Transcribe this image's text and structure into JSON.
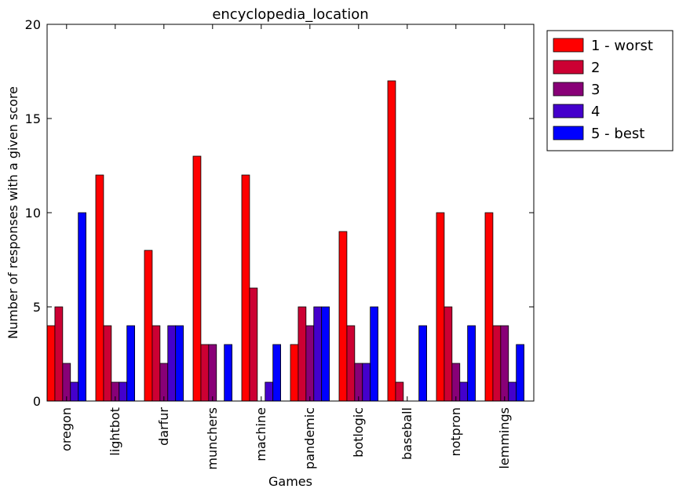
{
  "chart_data": {
    "type": "bar",
    "title": "encyclopedia_location",
    "xlabel": "Games",
    "ylabel": "Number of responses with a given score",
    "ylim": [
      0,
      20
    ],
    "yticks": [
      0,
      5,
      10,
      15,
      20
    ],
    "grid": false,
    "legend_placement": "outside-top-right",
    "categories": [
      "oregon",
      "lightbot",
      "darfur",
      "munchers",
      "machine",
      "pandemic",
      "botlogic",
      "baseball",
      "notpron",
      "lemmings"
    ],
    "series": [
      {
        "name": "1 - worst",
        "color": "#ff0000",
        "values": [
          4,
          12,
          8,
          13,
          12,
          3,
          9,
          17,
          10,
          10
        ]
      },
      {
        "name": "2",
        "color": "#cc0033",
        "values": [
          5,
          4,
          4,
          3,
          6,
          5,
          4,
          1,
          5,
          4
        ]
      },
      {
        "name": "3",
        "color": "#880077",
        "values": [
          2,
          1,
          2,
          3,
          0,
          4,
          2,
          0,
          2,
          4
        ]
      },
      {
        "name": "4",
        "color": "#4400cc",
        "values": [
          1,
          1,
          4,
          0,
          1,
          5,
          2,
          0,
          1,
          1
        ]
      },
      {
        "name": "5 - best",
        "color": "#0000ff",
        "values": [
          10,
          4,
          4,
          3,
          3,
          5,
          5,
          4,
          4,
          3
        ]
      }
    ]
  }
}
